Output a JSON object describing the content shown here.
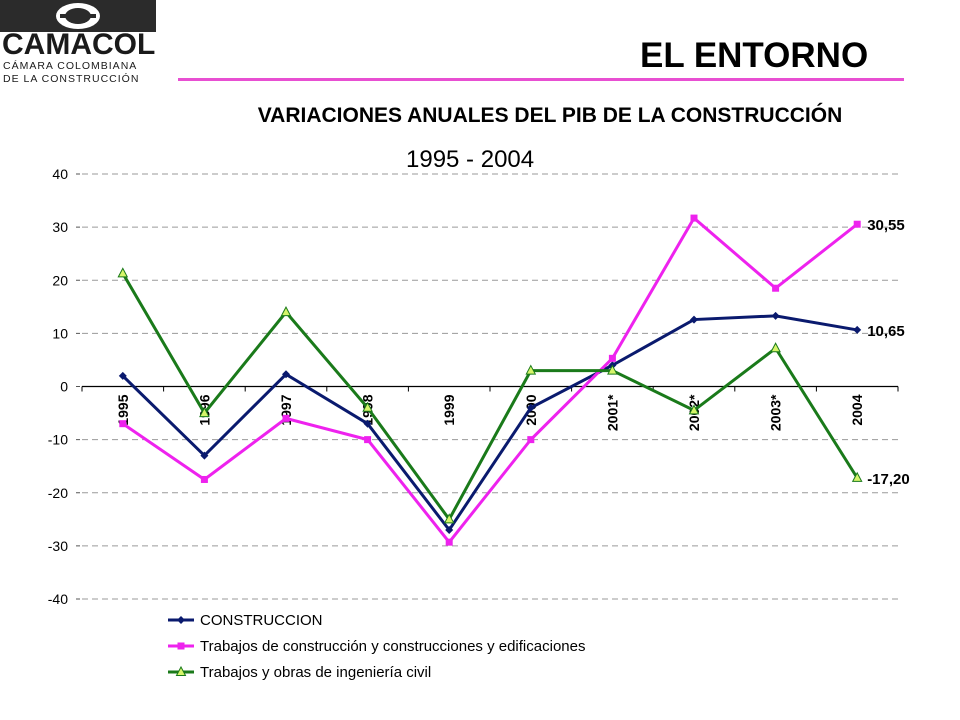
{
  "logo": {
    "name": "CAMACOL",
    "tagline_1": "CÁMARA COLOMBIANA",
    "tagline_2": "DE LA CONSTRUCCIÓN"
  },
  "page_title": "EL ENTORNO",
  "colors": {
    "accent_line": "#e84fd2",
    "series_construccion": "#0a1a6e",
    "series_edificaciones": "#ee22ee",
    "series_civil": "#1a7a1a"
  },
  "chart_data": {
    "type": "line",
    "title": "VARIACIONES ANUALES DEL PIB DE LA CONSTRUCCIÓN",
    "subtitle": "1995 - 2004",
    "categories": [
      "1995",
      "1996",
      "1997",
      "1998",
      "1999",
      "2000",
      "2001*",
      "2002*",
      "2003*",
      "2004"
    ],
    "ylim": [
      -40,
      40
    ],
    "yticks": [
      "40",
      "30",
      "20",
      "10",
      "0",
      "-10",
      "-20",
      "-30",
      "-40"
    ],
    "grid": "horizontal dashed",
    "legend_position": "bottom",
    "series": [
      {
        "name": "CONSTRUCCION",
        "marker": "diamond",
        "values": [
          2,
          -13,
          2.3,
          -7,
          -27,
          -4,
          4,
          12.6,
          13.3,
          10.65
        ],
        "end_label": "10,65"
      },
      {
        "name": "Trabajos de construcción y construcciones y edificaciones",
        "marker": "square",
        "values": [
          -7,
          -17.5,
          -6,
          -10,
          -29.3,
          -10,
          5.3,
          31.7,
          18.5,
          30.55
        ],
        "end_label": "30,55"
      },
      {
        "name": "Trabajos y obras de ingeniería civil",
        "marker": "triangle",
        "values": [
          21.3,
          -5,
          14,
          -4,
          -25,
          3,
          3,
          -4.5,
          7.2,
          -17.2
        ],
        "end_label": "-17,20"
      }
    ]
  }
}
